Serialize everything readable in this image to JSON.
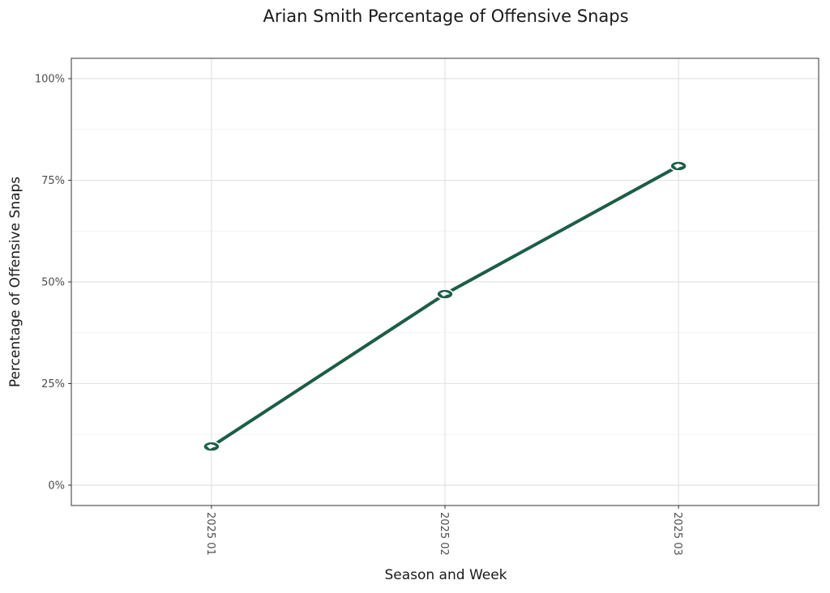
{
  "chart_data": {
    "type": "line",
    "title": "Arian Smith Percentage of Offensive Snaps",
    "xlabel": "Season and Week",
    "ylabel": "Percentage of Offensive Snaps",
    "categories": [
      "2025 01",
      "2025 02",
      "2025 03"
    ],
    "series": [
      {
        "values": [
          9.5,
          47,
          78.5
        ]
      }
    ],
    "ylim": [
      -5,
      105
    ],
    "y_ticks": [
      0,
      25,
      50,
      75,
      100
    ],
    "y_tick_labels": [
      "0%",
      "25%",
      "50%",
      "75%",
      "100%"
    ],
    "grid": true,
    "legend": "none",
    "colors": {
      "line": "#1b5e45",
      "marker_fill": "#1b5e45",
      "marker_outline": "#ffffff"
    },
    "marker_icon": "team-logo-icon"
  }
}
